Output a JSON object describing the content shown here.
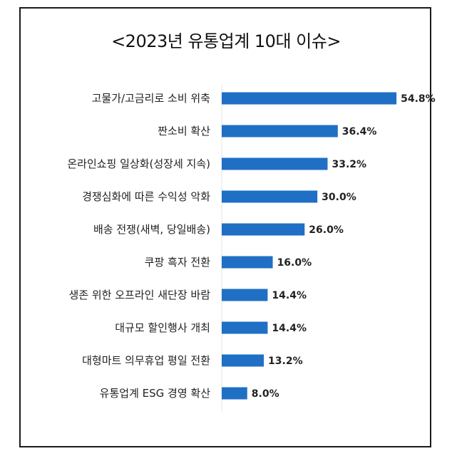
{
  "title": "<2023년 유통업계 10대 이슈>",
  "chart_data": {
    "type": "bar",
    "orientation": "horizontal",
    "title": "<2023년 유통업계 10대 이슈>",
    "categories": [
      "고물가/고금리로 소비 위축",
      "짠소비 확산",
      "온라인쇼핑 일상화(성장세 지속)",
      "경쟁심화에 따른 수익성 악화",
      "배송 전쟁(새벽, 당일배송)",
      "쿠팡 흑자 전환",
      "생존 위한 오프라인 새단장 바람",
      "대규모 할인행사 개최",
      "대형마트 의무휴업 평일 전환",
      "유통업계 ESG 경영 확산"
    ],
    "values": [
      54.8,
      36.4,
      33.2,
      30.0,
      26.0,
      16.0,
      14.4,
      14.4,
      13.2,
      8.0
    ],
    "value_labels": [
      "54.8%",
      "36.4%",
      "33.2%",
      "30.0%",
      "26.0%",
      "16.0%",
      "14.4%",
      "14.4%",
      "13.2%",
      "8.0%"
    ],
    "bar_color": "#1f6fc5",
    "xlim": [
      0,
      55
    ],
    "grid": false,
    "legend": "none"
  }
}
